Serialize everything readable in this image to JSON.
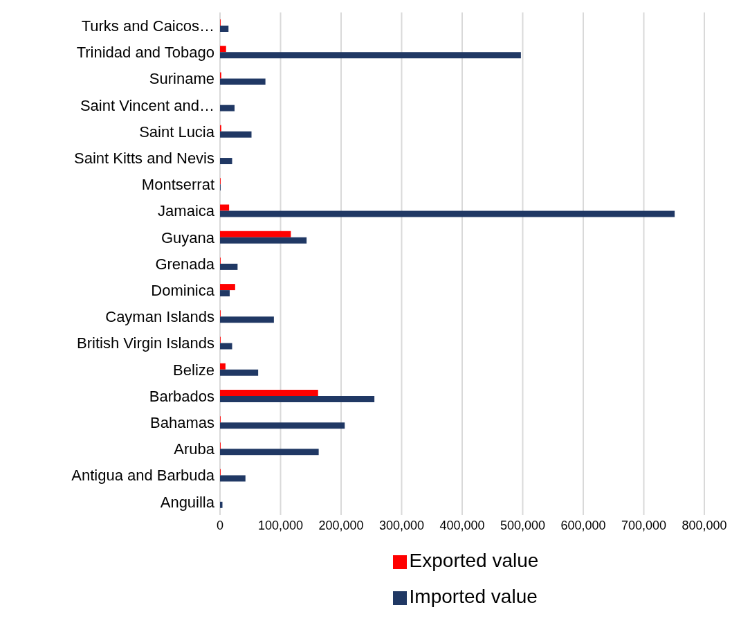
{
  "chart_data": {
    "type": "bar",
    "orientation": "horizontal",
    "categories": [
      "Turks and Caicos…",
      "Trinidad and Tobago",
      "Suriname",
      "Saint Vincent and…",
      "Saint Lucia",
      "Saint Kitts and Nevis",
      "Montserrat",
      "Jamaica",
      "Guyana",
      "Grenada",
      "Dominica",
      "Cayman Islands",
      "British Virgin Islands",
      "Belize",
      "Barbados",
      "Bahamas",
      "Aruba",
      "Antigua and Barbuda",
      "Anguilla"
    ],
    "series": [
      {
        "name": "Exported value",
        "color": "#ff0000",
        "values": [
          1000,
          10000,
          2000,
          0,
          2000,
          0,
          1000,
          15000,
          117000,
          1000,
          25000,
          1000,
          1000,
          9000,
          162000,
          1000,
          1000,
          1000,
          0
        ]
      },
      {
        "name": "Imported value",
        "color": "#203864",
        "values": [
          14000,
          497000,
          75000,
          24000,
          52000,
          20000,
          1000,
          751000,
          143000,
          29000,
          16000,
          89000,
          20000,
          63000,
          255000,
          206000,
          163000,
          42000,
          4000
        ]
      }
    ],
    "xlim": [
      0,
      800000
    ],
    "xticks": [
      0,
      {
        "value": 100000,
        "label": "100,000"
      },
      {
        "value": 200000,
        "label": "200,000"
      },
      {
        "value": 300000,
        "label": "300,000"
      },
      {
        "value": 400000,
        "label": "400,000"
      },
      {
        "value": 500000,
        "label": "500,000"
      },
      {
        "value": 600000,
        "label": "600,000"
      },
      {
        "value": 700000,
        "label": "700,000"
      },
      {
        "value": 800000,
        "label": "800,000"
      }
    ],
    "grid": "x",
    "legend": "bottom"
  }
}
